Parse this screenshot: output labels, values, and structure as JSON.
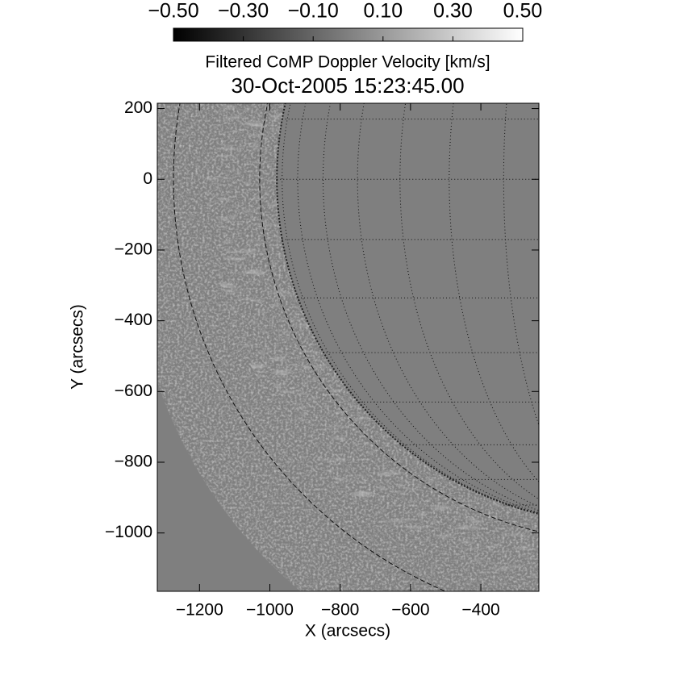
{
  "chart_data": {
    "type": "image",
    "title": "Filtered CoMP Doppler Velocity [km/s]",
    "subtitle": "30-Oct-2005 15:23:45.00",
    "x_label": "X (arcsecs)",
    "y_label": "Y (arcsecs)",
    "xlim": [
      -1320,
      -235
    ],
    "ylim": [
      -1165,
      215
    ],
    "xticks": [
      {
        "value": -1200,
        "label": "−1200"
      },
      {
        "value": -1000,
        "label": "−1000"
      },
      {
        "value": -800,
        "label": "−800"
      },
      {
        "value": -600,
        "label": "−600"
      },
      {
        "value": -400,
        "label": "−400"
      }
    ],
    "yticks": [
      200,
      0,
      {
        "value": -200,
        "label": "−200"
      },
      {
        "value": -400,
        "label": "−400"
      },
      {
        "value": -600,
        "label": "−600"
      },
      {
        "value": -800,
        "label": "−800"
      },
      {
        "value": -1000,
        "label": "−1000"
      }
    ],
    "clim": [
      -0.5,
      0.5
    ],
    "cticks": [
      {
        "value": -0.5,
        "label": "−0.50"
      },
      {
        "value": -0.3,
        "label": "−0.30"
      },
      {
        "value": -0.1,
        "label": "−0.10"
      },
      {
        "value": 0.1,
        "label": "0.10"
      },
      {
        "value": 0.3,
        "label": "0.30"
      },
      {
        "value": 0.5,
        "label": "0.50"
      }
    ],
    "colormap": [
      "#000000",
      "#ffffff"
    ]
  }
}
